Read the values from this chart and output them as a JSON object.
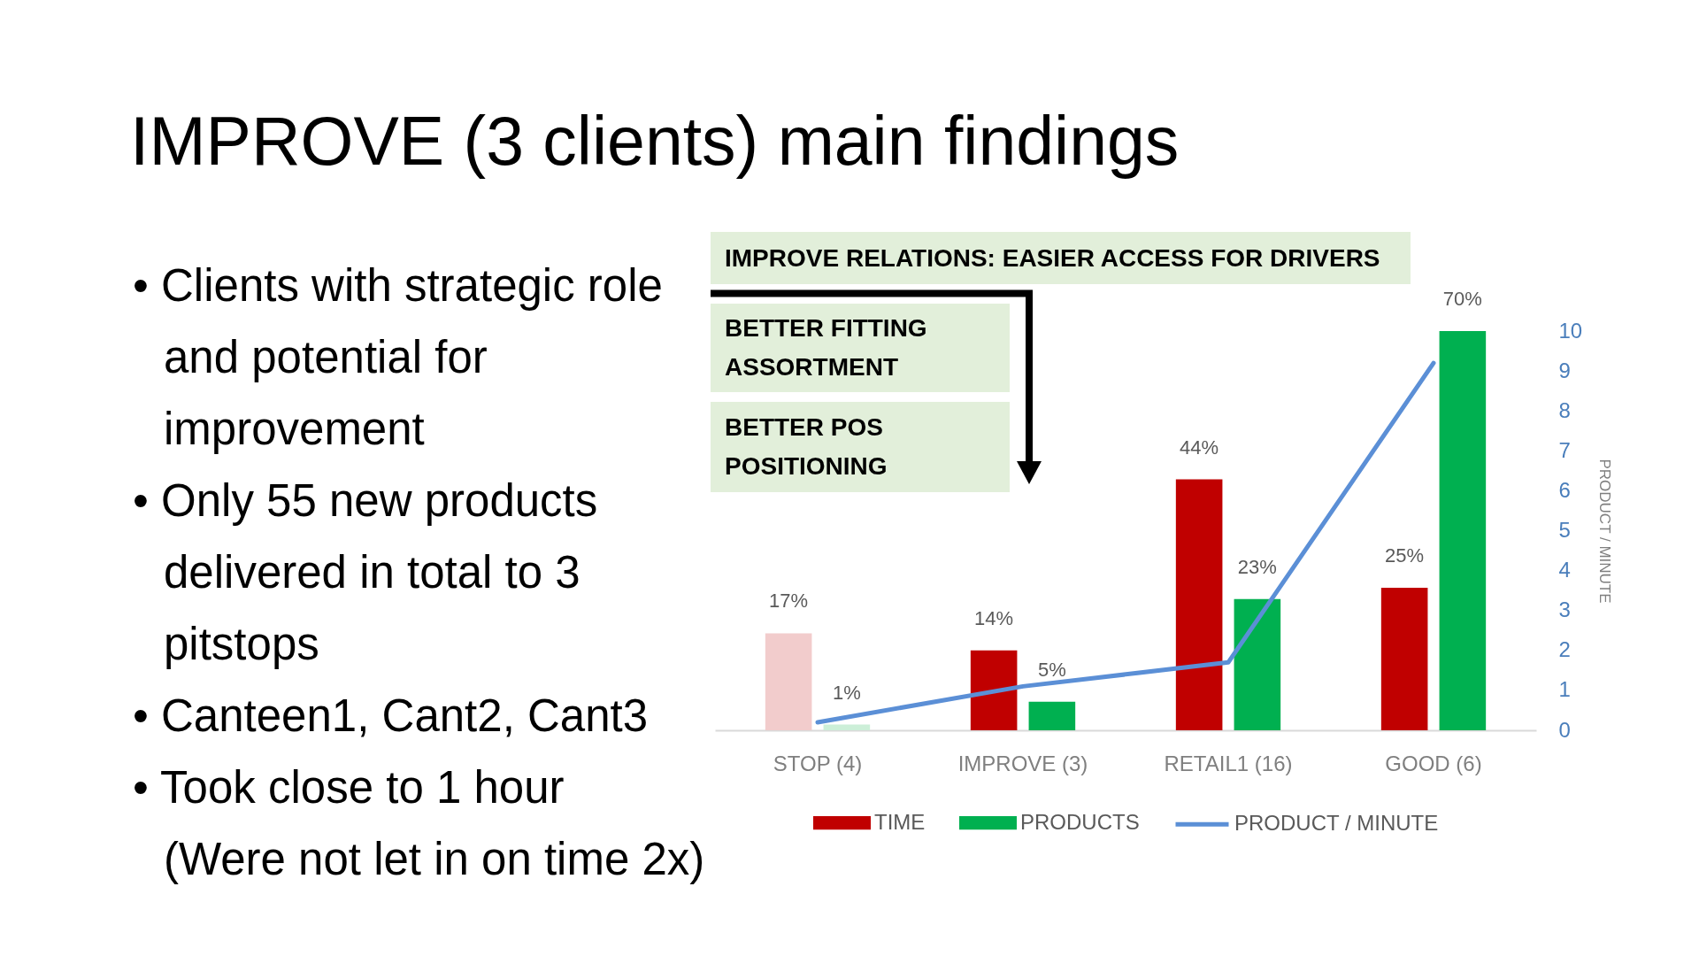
{
  "chart_data": {
    "type": "bar",
    "title": "IMPROVE (3 clients) main findings",
    "categories": [
      "STOP (4)",
      "IMPROVE (3)",
      "RETAIL1 (16)",
      "GOOD (6)"
    ],
    "series": [
      {
        "name": "TIME",
        "color": "#c00000",
        "colors": [
          "#f2cccc",
          "#c00000",
          "#c00000",
          "#c00000"
        ],
        "values": [
          17,
          14,
          44,
          25
        ],
        "value_labels": [
          "17%",
          "14%",
          "44%",
          "25%"
        ]
      },
      {
        "name": "PRODUCTS",
        "color": "#00b050",
        "colors": [
          "#ccefd8",
          "#00b050",
          "#00b050",
          "#00b050"
        ],
        "values": [
          1,
          5,
          23,
          70
        ],
        "value_labels": [
          "1%",
          "5%",
          "23%",
          "70%"
        ]
      },
      {
        "name": "PRODUCT / MINUTE",
        "type": "line",
        "axis": "y2",
        "color": "#5b8fd6",
        "values": [
          0.2,
          1.1,
          1.7,
          9.2
        ]
      }
    ],
    "y2label": "PRODUCT / MINUTE",
    "y2lim": [
      0,
      10
    ],
    "y2ticks": [
      0,
      1,
      2,
      3,
      4,
      5,
      6,
      7,
      8,
      9,
      10
    ],
    "legend": "bottom",
    "grid": false,
    "annotations": [
      "• Clients with strategic role\nand potential for\nimprovement",
      "• Only 55 new products\ndelivered in total to 3\npitstops",
      "• Canteen1, Cant2, Cant3",
      "• Took close to 1 hour\n(Were not let in on time 2x)",
      "IMPROVE RELATIONS: EASIER ACCESS FOR DRIVERS",
      "BETTER FITTING ASSORTMENT",
      "BETTER POS POSITIONING"
    ]
  }
}
